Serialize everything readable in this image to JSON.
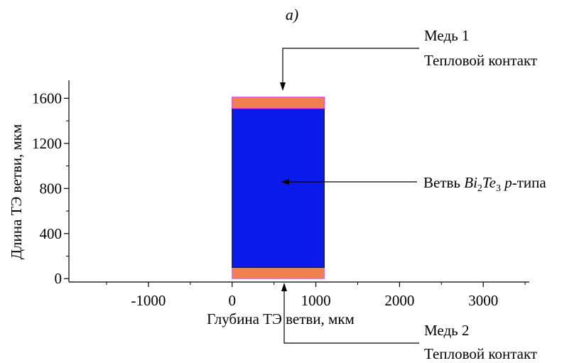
{
  "panel_label": "а)",
  "chart_data": {
    "type": "diagram",
    "xlabel": "Глубина ТЭ ветви, мкм",
    "ylabel": "Длина ТЭ ветви, мкм",
    "xlim": [
      -1950,
      3550
    ],
    "ylim": [
      -30,
      1760
    ],
    "x_ticks": [
      {
        "value": -1000,
        "label": "-1000"
      },
      {
        "value": 0,
        "label": "0"
      },
      {
        "value": 1000,
        "label": "1000"
      },
      {
        "value": 2000,
        "label": "2000"
      },
      {
        "value": 3000,
        "label": "3000"
      }
    ],
    "x_minor_ticks": [
      -1500,
      -500,
      500,
      1500,
      2500,
      3500
    ],
    "y_ticks": [
      {
        "value": 0,
        "label": "0"
      },
      {
        "value": 400,
        "label": "400"
      },
      {
        "value": 800,
        "label": "800"
      },
      {
        "value": 1200,
        "label": "1200"
      },
      {
        "value": 1600,
        "label": "1600"
      }
    ],
    "y_minor_ticks": [
      200,
      600,
      1000,
      1400
    ],
    "regions": [
      {
        "name": "copper-bottom",
        "x0": 0,
        "x1": 1100,
        "y0": 0,
        "y1": 100,
        "color": "#f08050",
        "edge": "#d070d0"
      },
      {
        "name": "branch",
        "x0": 0,
        "x1": 1100,
        "y0": 100,
        "y1": 1510,
        "color": "#0a1aeb",
        "edge": "#111133"
      },
      {
        "name": "copper-top",
        "x0": 0,
        "x1": 1100,
        "y0": 1510,
        "y1": 1610,
        "color": "#f08050",
        "edge": "#e040e0"
      }
    ]
  },
  "annotations": {
    "top": {
      "line1": "Медь 1",
      "line2": "Тепловой контакт"
    },
    "middle": {
      "prefix": "Ветвь ",
      "bi": "Bi",
      "sub1": "2",
      "te": "Te",
      "sub2": "3",
      "space": " ",
      "p": "p",
      "suffix": "-типа"
    },
    "bottom": {
      "line1": "Медь 2",
      "line2": "Тепловой контакт"
    }
  }
}
